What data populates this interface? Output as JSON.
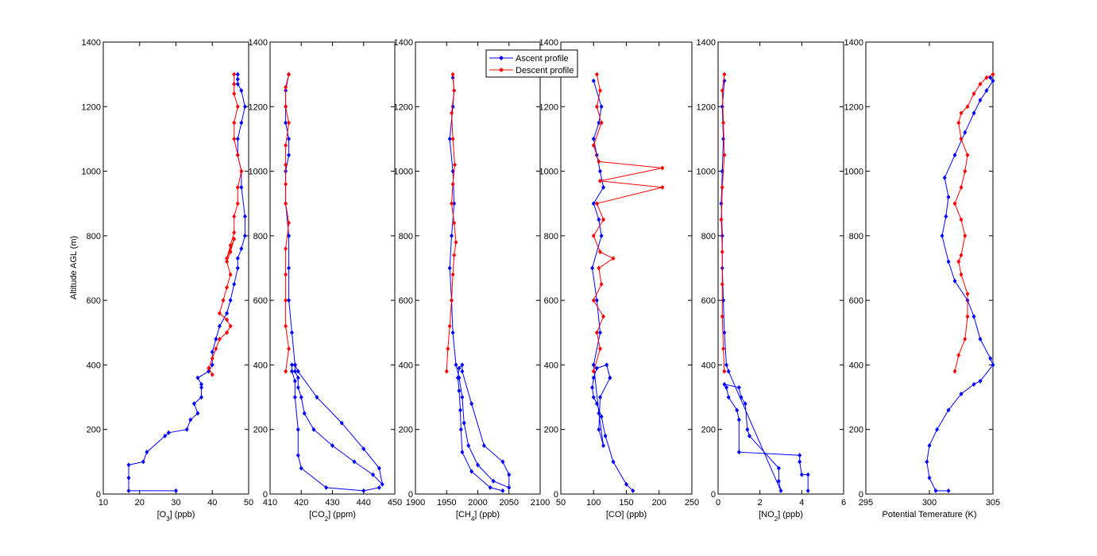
{
  "chart_data": [
    {
      "type": "line",
      "xlabel": "[O3] (ppb)",
      "xlabel_main": "[O",
      "xlabel_sub": "3",
      "xlabel_tail": "] (ppb)",
      "ylabel": "Altitude AGL (m)",
      "xlim": [
        10,
        50
      ],
      "ylim": [
        0,
        1400
      ],
      "xticks": [
        "10",
        "20",
        "30",
        "40",
        "50"
      ],
      "yticks": [
        "0",
        "200",
        "400",
        "600",
        "800",
        "1000",
        "1200",
        "1400"
      ],
      "series": [
        {
          "name": "Ascent profile",
          "color": "#0000ff",
          "x": [
            30,
            17,
            17,
            17,
            21,
            22,
            27,
            28,
            33,
            34,
            36,
            35,
            37,
            37,
            37,
            36,
            39,
            40,
            40,
            41,
            42,
            44,
            45,
            46,
            47,
            47,
            48,
            49,
            49,
            48,
            48,
            47,
            47,
            48,
            49,
            48,
            47,
            47,
            47
          ],
          "y": [
            10,
            10,
            50,
            90,
            100,
            130,
            180,
            190,
            200,
            230,
            250,
            280,
            300,
            330,
            340,
            360,
            380,
            400,
            440,
            480,
            520,
            560,
            600,
            650,
            700,
            730,
            760,
            800,
            860,
            950,
            1000,
            1050,
            1100,
            1150,
            1200,
            1250,
            1270,
            1285,
            1300
          ]
        },
        {
          "name": "Descent profile",
          "color": "#ff0000",
          "x": [
            40,
            39,
            40,
            41,
            42,
            44,
            45,
            44,
            42,
            43,
            44,
            45,
            44,
            45,
            46,
            44,
            45,
            46,
            46,
            47,
            47,
            48,
            47,
            46,
            46,
            47,
            46,
            46,
            46
          ],
          "y": [
            370,
            390,
            420,
            450,
            480,
            500,
            520,
            540,
            560,
            600,
            640,
            680,
            720,
            750,
            790,
            730,
            770,
            810,
            860,
            900,
            950,
            1000,
            1050,
            1100,
            1150,
            1200,
            1240,
            1270,
            1300
          ]
        }
      ]
    },
    {
      "type": "line",
      "xlabel": "[CO2] (ppm)",
      "xlabel_main": "[CO",
      "xlabel_sub": "2",
      "xlabel_tail": "] (ppm)",
      "xlim": [
        410,
        450
      ],
      "ylim": [
        0,
        1400
      ],
      "xticks": [
        "410",
        "420",
        "430",
        "440",
        "450"
      ],
      "yticks": [
        "0",
        "200",
        "400",
        "600",
        "800",
        "1000",
        "1200",
        "1400"
      ],
      "series": [
        {
          "name": "Ascent profile",
          "color": "#0000ff",
          "x": [
            445,
            440,
            428,
            420,
            419,
            419,
            418,
            418,
            417,
            417,
            418,
            419,
            425,
            433,
            440,
            445,
            446,
            443,
            437,
            430,
            424,
            421,
            420,
            419,
            419,
            418,
            418,
            417,
            416,
            416,
            416,
            415,
            415,
            416,
            416,
            415,
            415,
            415,
            416
          ],
          "y": [
            20,
            10,
            20,
            80,
            120,
            200,
            300,
            350,
            380,
            400,
            400,
            380,
            300,
            220,
            140,
            80,
            30,
            60,
            100,
            150,
            200,
            250,
            300,
            330,
            360,
            380,
            400,
            500,
            600,
            700,
            800,
            900,
            1000,
            1050,
            1100,
            1150,
            1200,
            1250,
            1300
          ]
        },
        {
          "name": "Descent profile",
          "color": "#ff0000",
          "x": [
            415,
            416,
            415,
            415,
            415,
            415,
            416,
            415,
            415,
            415,
            415,
            416,
            415,
            415,
            416
          ],
          "y": [
            380,
            450,
            520,
            600,
            680,
            760,
            840,
            900,
            960,
            1020,
            1080,
            1150,
            1200,
            1260,
            1300
          ]
        }
      ]
    },
    {
      "type": "line",
      "xlabel": "[CH4] (ppb)",
      "xlabel_main": "[CH",
      "xlabel_sub": "4",
      "xlabel_tail": "] (ppb)",
      "xlim": [
        1900,
        2100
      ],
      "ylim": [
        0,
        1400
      ],
      "xticks": [
        "1900",
        "1950",
        "2000",
        "2050",
        "2100"
      ],
      "yticks": [
        "0",
        "200",
        "400",
        "600",
        "800",
        "1000",
        "1200",
        "1400"
      ],
      "series": [
        {
          "name": "Ascent profile",
          "color": "#0000ff",
          "x": [
            2040,
            2020,
            1990,
            1975,
            1973,
            1972,
            1970,
            1968,
            1970,
            1975,
            1975,
            1990,
            2010,
            2040,
            2050,
            2050,
            2025,
            2000,
            1985,
            1978,
            1975,
            1970,
            1965,
            1960,
            1958,
            1955,
            1958,
            1962,
            1960,
            1955,
            1960,
            1962,
            1960
          ],
          "y": [
            10,
            20,
            70,
            130,
            200,
            260,
            320,
            360,
            390,
            400,
            380,
            280,
            150,
            100,
            60,
            20,
            40,
            90,
            150,
            220,
            300,
            360,
            400,
            500,
            600,
            700,
            800,
            900,
            1000,
            1100,
            1200,
            1250,
            1290
          ]
        },
        {
          "name": "Descent profile",
          "color": "#ff0000",
          "x": [
            1950,
            1952,
            1955,
            1958,
            1960,
            1962,
            1965,
            1962,
            1958,
            1960,
            1963,
            1960,
            1958,
            1962,
            1960
          ],
          "y": [
            380,
            450,
            520,
            600,
            680,
            740,
            780,
            840,
            900,
            960,
            1020,
            1100,
            1180,
            1250,
            1300
          ]
        }
      ]
    },
    {
      "type": "line",
      "xlabel": "[CO] (ppb)",
      "xlim": [
        50,
        250
      ],
      "ylim": [
        0,
        1400
      ],
      "xticks": [
        "50",
        "100",
        "150",
        "200",
        "250"
      ],
      "yticks": [
        "0",
        "200",
        "400",
        "600",
        "800",
        "1000",
        "1200",
        "1400"
      ],
      "series": [
        {
          "name": "Ascent profile",
          "color": "#0000ff",
          "x": [
            160,
            150,
            130,
            118,
            112,
            105,
            100,
            98,
            100,
            105,
            120,
            125,
            110,
            108,
            115,
            108,
            100,
            110,
            105,
            98,
            112,
            108,
            100,
            115,
            110,
            105,
            100,
            108,
            112,
            100
          ],
          "y": [
            10,
            30,
            100,
            180,
            240,
            280,
            300,
            330,
            360,
            390,
            400,
            360,
            300,
            200,
            150,
            250,
            400,
            500,
            600,
            700,
            800,
            850,
            900,
            950,
            1000,
            1050,
            1100,
            1150,
            1200,
            1280
          ]
        },
        {
          "name": "Descent profile",
          "color": "#ff0000",
          "x": [
            100,
            110,
            105,
            115,
            100,
            112,
            108,
            130,
            110,
            100,
            115,
            105,
            205,
            110,
            205,
            108,
            100,
            112,
            105,
            110,
            105
          ],
          "y": [
            380,
            450,
            500,
            550,
            600,
            650,
            700,
            730,
            750,
            800,
            850,
            900,
            950,
            970,
            1010,
            1030,
            1080,
            1150,
            1200,
            1250,
            1300
          ]
        }
      ]
    },
    {
      "type": "line",
      "xlabel": "[NO2] (ppb)",
      "xlabel_main": "[NO",
      "xlabel_sub": "2",
      "xlabel_tail": "] (ppb)",
      "xlim": [
        0,
        6
      ],
      "ylim": [
        0,
        1400
      ],
      "xticks": [
        "0",
        "2",
        "4",
        "6"
      ],
      "yticks": [
        "0",
        "200",
        "400",
        "600",
        "800",
        "1000",
        "1200",
        "1400"
      ],
      "series": [
        {
          "name": "Ascent profile",
          "color": "#0000ff",
          "x": [
            4.3,
            4.3,
            4.0,
            3.9,
            3.9,
            1.0,
            1.0,
            0.9,
            0.5,
            0.4,
            0.3,
            1.0,
            1.1,
            1.3,
            1.4,
            1.5,
            2.9,
            2.9,
            3.0,
            0.5,
            0.4,
            0.3,
            0.25,
            0.2,
            0.2,
            0.15,
            0.2,
            0.25,
            0.2,
            0.3
          ],
          "y": [
            10,
            60,
            60,
            100,
            120,
            130,
            230,
            260,
            300,
            330,
            340,
            330,
            300,
            280,
            200,
            180,
            80,
            40,
            10,
            380,
            400,
            500,
            600,
            700,
            800,
            900,
            1000,
            1100,
            1200,
            1280
          ]
        },
        {
          "name": "Descent profile",
          "color": "#ff0000",
          "x": [
            0.3,
            0.25,
            0.2,
            0.2,
            0.2,
            0.15,
            0.2,
            0.3,
            0.25,
            0.2,
            0.3
          ],
          "y": [
            380,
            450,
            550,
            650,
            750,
            850,
            950,
            1050,
            1150,
            1250,
            1300
          ]
        }
      ]
    },
    {
      "type": "line",
      "xlabel": "Potential Temerature (K)",
      "xlim": [
        295,
        305
      ],
      "ylim": [
        0,
        1400
      ],
      "xticks": [
        "295",
        "300",
        "305"
      ],
      "yticks": [
        "0",
        "200",
        "400",
        "600",
        "800",
        "1000",
        "1200",
        "1400"
      ],
      "series": [
        {
          "name": "Ascent profile",
          "color": "#0000ff",
          "x": [
            301.5,
            300.5,
            300.0,
            299.8,
            300.0,
            300.6,
            301.5,
            302.5,
            303.5,
            304.0,
            305.0,
            304.8,
            304.0,
            303.5,
            303.0,
            302.0,
            301.5,
            301.0,
            301.3,
            301.5,
            301.2,
            302.0,
            302.8,
            303.5,
            304.0,
            304.5,
            305.0,
            304.8
          ],
          "y": [
            10,
            10,
            50,
            100,
            150,
            200,
            260,
            310,
            340,
            350,
            400,
            420,
            480,
            550,
            600,
            660,
            720,
            800,
            860,
            920,
            980,
            1050,
            1120,
            1180,
            1220,
            1250,
            1280,
            1290
          ]
        },
        {
          "name": "Descent profile",
          "color": "#ff0000",
          "x": [
            302.0,
            302.3,
            302.8,
            303.0,
            303.0,
            302.5,
            302.3,
            302.5,
            302.8,
            302.5,
            302.0,
            302.5,
            302.8,
            303.0,
            302.5,
            302.3,
            302.5,
            303.0,
            303.5,
            304.0,
            304.5,
            305.0
          ],
          "y": [
            380,
            430,
            480,
            550,
            620,
            680,
            720,
            740,
            800,
            850,
            900,
            950,
            1000,
            1050,
            1100,
            1150,
            1180,
            1200,
            1240,
            1270,
            1290,
            1300
          ]
        }
      ]
    }
  ],
  "legend": {
    "position": "top",
    "entries": [
      "Ascent profile",
      "Descent profile"
    ],
    "colors": [
      "#0000ff",
      "#ff0000"
    ]
  }
}
